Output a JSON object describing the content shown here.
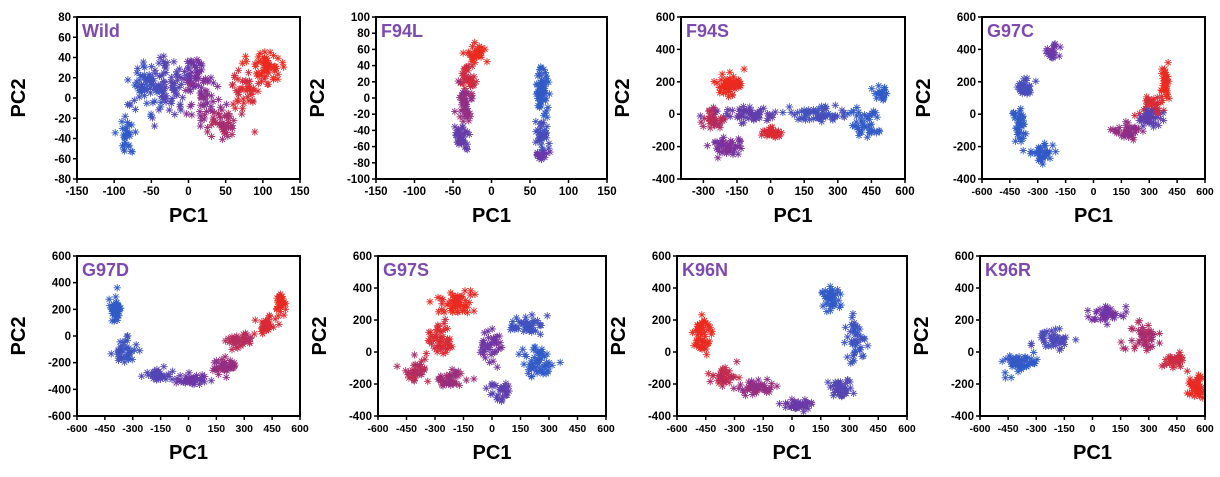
{
  "figure": {
    "palette": {
      "red": "#ee2a1d",
      "purple": "#7b2f9e",
      "blue": "#2f5cc8",
      "title": "#7d4bb0",
      "axis": "#000000"
    },
    "marker_glyph": "asterisk",
    "point_color_gradient": "red-purple-blue"
  },
  "chart_data": [
    {
      "type": "scatter",
      "title": "Wild",
      "xlabel": "PC1",
      "ylabel": "PC2",
      "xlim": [
        -150,
        150
      ],
      "ylim": [
        -80,
        80
      ],
      "xticks": [
        -150,
        -100,
        -50,
        0,
        50,
        100,
        150
      ],
      "yticks": [
        -80,
        -60,
        -40,
        -20,
        0,
        20,
        40,
        60,
        80
      ],
      "clusters": [
        {
          "color_t": 0.0,
          "center": [
            105,
            30
          ],
          "spread": [
            18,
            14
          ],
          "count": 55
        },
        {
          "color_t": 0.1,
          "center": [
            75,
            5
          ],
          "spread": [
            20,
            20
          ],
          "count": 45
        },
        {
          "color_t": 0.3,
          "center": [
            45,
            -25
          ],
          "spread": [
            20,
            14
          ],
          "count": 45
        },
        {
          "color_t": 0.45,
          "center": [
            15,
            0
          ],
          "spread": [
            22,
            22
          ],
          "count": 50
        },
        {
          "color_t": 0.55,
          "center": [
            10,
            25
          ],
          "spread": [
            18,
            15
          ],
          "count": 35
        },
        {
          "color_t": 0.75,
          "center": [
            -30,
            15
          ],
          "spread": [
            20,
            28
          ],
          "count": 70
        },
        {
          "color_t": 0.9,
          "center": [
            -60,
            10
          ],
          "spread": [
            20,
            30
          ],
          "count": 60
        },
        {
          "color_t": 1.0,
          "center": [
            -85,
            -35
          ],
          "spread": [
            10,
            16
          ],
          "count": 30
        }
      ]
    },
    {
      "type": "scatter",
      "title": "F94L",
      "xlabel": "PC1",
      "ylabel": "PC2",
      "xlim": [
        -150,
        150
      ],
      "ylim": [
        -100,
        100
      ],
      "xticks": [
        -150,
        -100,
        -50,
        0,
        50,
        100,
        150
      ],
      "yticks": [
        -100,
        -80,
        -60,
        -40,
        -20,
        0,
        20,
        40,
        60,
        80,
        100
      ],
      "clusters": [
        {
          "color_t": 0.0,
          "center": [
            -20,
            55
          ],
          "spread": [
            12,
            10
          ],
          "count": 30
        },
        {
          "color_t": 0.15,
          "center": [
            -30,
            25
          ],
          "spread": [
            10,
            18
          ],
          "count": 35
        },
        {
          "color_t": 0.4,
          "center": [
            -35,
            -10
          ],
          "spread": [
            10,
            20
          ],
          "count": 40
        },
        {
          "color_t": 0.65,
          "center": [
            -40,
            -50
          ],
          "spread": [
            9,
            15
          ],
          "count": 35
        },
        {
          "color_t": 1.0,
          "center": [
            65,
            10
          ],
          "spread": [
            8,
            30
          ],
          "count": 60
        },
        {
          "color_t": 0.85,
          "center": [
            65,
            -45
          ],
          "spread": [
            8,
            15
          ],
          "count": 35
        },
        {
          "color_t": 0.6,
          "center": [
            65,
            -70
          ],
          "spread": [
            8,
            6
          ],
          "count": 15
        }
      ]
    },
    {
      "type": "scatter",
      "title": "F94S",
      "xlabel": "PC1",
      "ylabel": "PC2",
      "xlim": [
        -400,
        600
      ],
      "ylim": [
        -400,
        600
      ],
      "xticks": [
        -300,
        -150,
        0,
        150,
        300,
        450,
        600
      ],
      "yticks": [
        -400,
        -200,
        0,
        200,
        400,
        600
      ],
      "clusters": [
        {
          "color_t": 0.0,
          "center": [
            -180,
            180
          ],
          "spread": [
            60,
            70
          ],
          "count": 55
        },
        {
          "color_t": 0.1,
          "center": [
            0,
            -120
          ],
          "spread": [
            40,
            40
          ],
          "count": 30
        },
        {
          "color_t": 0.25,
          "center": [
            -250,
            -30
          ],
          "spread": [
            50,
            50
          ],
          "count": 40
        },
        {
          "color_t": 0.5,
          "center": [
            -200,
            -200
          ],
          "spread": [
            60,
            50
          ],
          "count": 45
        },
        {
          "color_t": 0.65,
          "center": [
            -100,
            0
          ],
          "spread": [
            110,
            40
          ],
          "count": 55
        },
        {
          "color_t": 0.85,
          "center": [
            200,
            0
          ],
          "spread": [
            130,
            40
          ],
          "count": 60
        },
        {
          "color_t": 1.0,
          "center": [
            420,
            -50
          ],
          "spread": [
            70,
            90
          ],
          "count": 45
        },
        {
          "color_t": 1.0,
          "center": [
            490,
            130
          ],
          "spread": [
            25,
            50
          ],
          "count": 20
        }
      ]
    },
    {
      "type": "scatter",
      "title": "G97C",
      "xlabel": "PC1",
      "ylabel": "PC2",
      "xlim": [
        -600,
        600
      ],
      "ylim": [
        -400,
        600
      ],
      "xticks": [
        -600,
        -450,
        -300,
        -150,
        0,
        150,
        300,
        450,
        600
      ],
      "yticks": [
        -400,
        -200,
        0,
        200,
        400,
        600
      ],
      "clusters": [
        {
          "color_t": 0.0,
          "center": [
            390,
            180
          ],
          "spread": [
            25,
            90
          ],
          "count": 35
        },
        {
          "color_t": 0.1,
          "center": [
            310,
            40
          ],
          "spread": [
            60,
            60
          ],
          "count": 40
        },
        {
          "color_t": 0.4,
          "center": [
            180,
            -100
          ],
          "spread": [
            70,
            50
          ],
          "count": 40
        },
        {
          "color_t": 0.7,
          "center": [
            300,
            -30
          ],
          "spread": [
            60,
            40
          ],
          "count": 35
        },
        {
          "color_t": 0.6,
          "center": [
            -220,
            380
          ],
          "spread": [
            40,
            40
          ],
          "count": 25
        },
        {
          "color_t": 0.85,
          "center": [
            -370,
            170
          ],
          "spread": [
            40,
            60
          ],
          "count": 35
        },
        {
          "color_t": 1.0,
          "center": [
            -400,
            -50
          ],
          "spread": [
            30,
            80
          ],
          "count": 40
        },
        {
          "color_t": 1.0,
          "center": [
            -280,
            -240
          ],
          "spread": [
            60,
            50
          ],
          "count": 40
        }
      ]
    },
    {
      "type": "scatter",
      "title": "G97D",
      "xlabel": "PC1",
      "ylabel": "PC2",
      "xlim": [
        -600,
        600
      ],
      "ylim": [
        -600,
        600
      ],
      "xticks": [
        -600,
        -450,
        -300,
        -150,
        0,
        150,
        300,
        450,
        600
      ],
      "yticks": [
        -600,
        -400,
        -200,
        0,
        200,
        400,
        600
      ],
      "clusters": [
        {
          "color_t": 0.0,
          "center": [
            500,
            250
          ],
          "spread": [
            25,
            80
          ],
          "count": 35
        },
        {
          "color_t": 0.1,
          "center": [
            420,
            80
          ],
          "spread": [
            50,
            60
          ],
          "count": 35
        },
        {
          "color_t": 0.25,
          "center": [
            280,
            -40
          ],
          "spread": [
            70,
            50
          ],
          "count": 40
        },
        {
          "color_t": 0.4,
          "center": [
            180,
            -220
          ],
          "spread": [
            70,
            60
          ],
          "count": 45
        },
        {
          "color_t": 0.6,
          "center": [
            20,
            -330
          ],
          "spread": [
            80,
            35
          ],
          "count": 45
        },
        {
          "color_t": 0.75,
          "center": [
            -170,
            -300
          ],
          "spread": [
            70,
            40
          ],
          "count": 40
        },
        {
          "color_t": 0.9,
          "center": [
            -330,
            -120
          ],
          "spread": [
            50,
            80
          ],
          "count": 40
        },
        {
          "color_t": 1.0,
          "center": [
            -390,
            200
          ],
          "spread": [
            30,
            90
          ],
          "count": 45
        }
      ]
    },
    {
      "type": "scatter",
      "title": "G97S",
      "xlabel": "PC1",
      "ylabel": "PC2",
      "xlim": [
        -600,
        600
      ],
      "ylim": [
        -400,
        600
      ],
      "xticks": [
        -600,
        -450,
        -300,
        -150,
        0,
        150,
        300,
        450,
        600
      ],
      "yticks": [
        -400,
        -200,
        0,
        200,
        400,
        600
      ],
      "clusters": [
        {
          "color_t": 0.0,
          "center": [
            -190,
            300
          ],
          "spread": [
            90,
            60
          ],
          "count": 55
        },
        {
          "color_t": 0.1,
          "center": [
            -270,
            80
          ],
          "spread": [
            60,
            110
          ],
          "count": 50
        },
        {
          "color_t": 0.25,
          "center": [
            -400,
            -110
          ],
          "spread": [
            50,
            60
          ],
          "count": 35
        },
        {
          "color_t": 0.35,
          "center": [
            -210,
            -170
          ],
          "spread": [
            90,
            40
          ],
          "count": 40
        },
        {
          "color_t": 0.55,
          "center": [
            0,
            40
          ],
          "spread": [
            60,
            90
          ],
          "count": 40
        },
        {
          "color_t": 0.7,
          "center": [
            40,
            -250
          ],
          "spread": [
            50,
            50
          ],
          "count": 30
        },
        {
          "color_t": 0.9,
          "center": [
            180,
            170
          ],
          "spread": [
            110,
            60
          ],
          "count": 45
        },
        {
          "color_t": 1.0,
          "center": [
            250,
            -80
          ],
          "spread": [
            90,
            100
          ],
          "count": 55
        }
      ]
    },
    {
      "type": "scatter",
      "title": "K96N",
      "xlabel": "PC1",
      "ylabel": "PC2",
      "xlim": [
        -600,
        600
      ],
      "ylim": [
        -400,
        600
      ],
      "xticks": [
        -600,
        -450,
        -300,
        -150,
        0,
        150,
        300,
        450,
        600
      ],
      "yticks": [
        -400,
        -200,
        0,
        200,
        400,
        600
      ],
      "clusters": [
        {
          "color_t": 0.0,
          "center": [
            -470,
            100
          ],
          "spread": [
            50,
            110
          ],
          "count": 55
        },
        {
          "color_t": 0.2,
          "center": [
            -360,
            -150
          ],
          "spread": [
            60,
            50
          ],
          "count": 40
        },
        {
          "color_t": 0.4,
          "center": [
            -180,
            -220
          ],
          "spread": [
            80,
            45
          ],
          "count": 45
        },
        {
          "color_t": 0.6,
          "center": [
            30,
            -330
          ],
          "spread": [
            80,
            40
          ],
          "count": 40
        },
        {
          "color_t": 0.75,
          "center": [
            250,
            -220
          ],
          "spread": [
            60,
            60
          ],
          "count": 40
        },
        {
          "color_t": 0.9,
          "center": [
            330,
            70
          ],
          "spread": [
            40,
            110
          ],
          "count": 45
        },
        {
          "color_t": 1.0,
          "center": [
            200,
            330
          ],
          "spread": [
            50,
            70
          ],
          "count": 40
        }
      ]
    },
    {
      "type": "scatter",
      "title": "K96R",
      "xlabel": "PC1",
      "ylabel": "PC2",
      "xlim": [
        -600,
        600
      ],
      "ylim": [
        -400,
        600
      ],
      "xticks": [
        -600,
        -450,
        -300,
        -150,
        0,
        150,
        300,
        450,
        600
      ],
      "yticks": [
        -400,
        -200,
        0,
        200,
        400,
        600
      ],
      "clusters": [
        {
          "color_t": 0.0,
          "center": [
            560,
            -220
          ],
          "spread": [
            40,
            60
          ],
          "count": 40
        },
        {
          "color_t": 0.15,
          "center": [
            440,
            -50
          ],
          "spread": [
            50,
            50
          ],
          "count": 35
        },
        {
          "color_t": 0.3,
          "center": [
            270,
            80
          ],
          "spread": [
            70,
            70
          ],
          "count": 45
        },
        {
          "color_t": 0.55,
          "center": [
            60,
            240
          ],
          "spread": [
            90,
            40
          ],
          "count": 40
        },
        {
          "color_t": 0.8,
          "center": [
            -200,
            80
          ],
          "spread": [
            80,
            60
          ],
          "count": 45
        },
        {
          "color_t": 1.0,
          "center": [
            -380,
            -70
          ],
          "spread": [
            80,
            60
          ],
          "count": 55
        }
      ]
    }
  ]
}
